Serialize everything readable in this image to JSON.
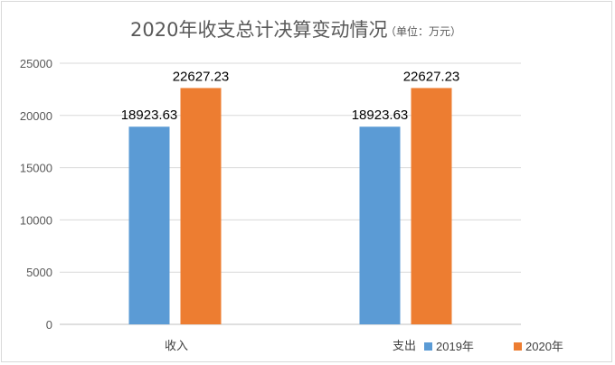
{
  "chart_data": {
    "type": "bar",
    "title": "2020年收支总计决算变动情况",
    "title_unit": "（单位：万元）",
    "categories": [
      "收入",
      "支出"
    ],
    "series": [
      {
        "name": "2019年",
        "values": [
          18923.63,
          18923.63
        ],
        "labels": [
          "18923.63",
          "18923.63"
        ],
        "color": "#5b9bd5"
      },
      {
        "name": "2020年",
        "values": [
          22627.23,
          22627.23
        ],
        "labels": [
          "22627.23",
          "22627.23"
        ],
        "color": "#ed7d31"
      }
    ],
    "ylim": [
      0,
      25000
    ],
    "yticks": [
      0,
      5000,
      10000,
      15000,
      20000,
      25000
    ],
    "ytick_labels": [
      "0",
      "5000",
      "10000",
      "15000",
      "20000",
      "25000"
    ],
    "xlabel": "",
    "ylabel": "",
    "grid": true,
    "legend_position": "bottom-right"
  }
}
